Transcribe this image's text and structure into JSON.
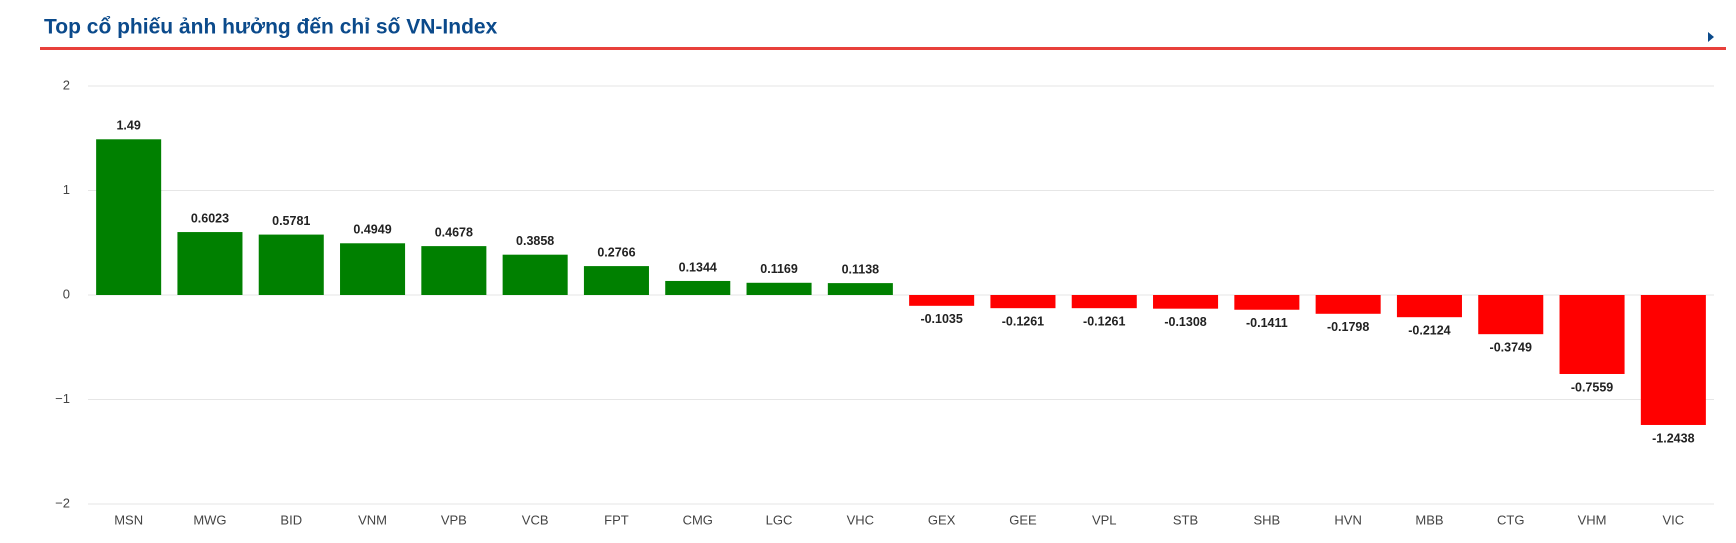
{
  "chart_data": {
    "type": "bar",
    "title": "Top cổ phiếu ảnh hưởng đến chỉ số VN-Index",
    "categories": [
      "MSN",
      "MWG",
      "BID",
      "VNM",
      "VPB",
      "VCB",
      "FPT",
      "CMG",
      "LGC",
      "VHC",
      "GEX",
      "GEE",
      "VPL",
      "STB",
      "SHB",
      "HVN",
      "MBB",
      "CTG",
      "VHM",
      "VIC"
    ],
    "values": [
      1.49,
      0.6023,
      0.5781,
      0.4949,
      0.4678,
      0.3858,
      0.2766,
      0.1344,
      0.1169,
      0.1138,
      -0.1035,
      -0.1261,
      -0.1261,
      -0.1308,
      -0.1411,
      -0.1798,
      -0.2124,
      -0.3749,
      -0.7559,
      -1.2438
    ],
    "positive_color": "#008000",
    "negative_color": "#ff0000",
    "ylim": [
      -2,
      2
    ],
    "yticks": [
      {
        "value": -2,
        "label": "−2"
      },
      {
        "value": -1,
        "label": "−1"
      },
      0,
      1,
      2
    ],
    "grid": true
  }
}
